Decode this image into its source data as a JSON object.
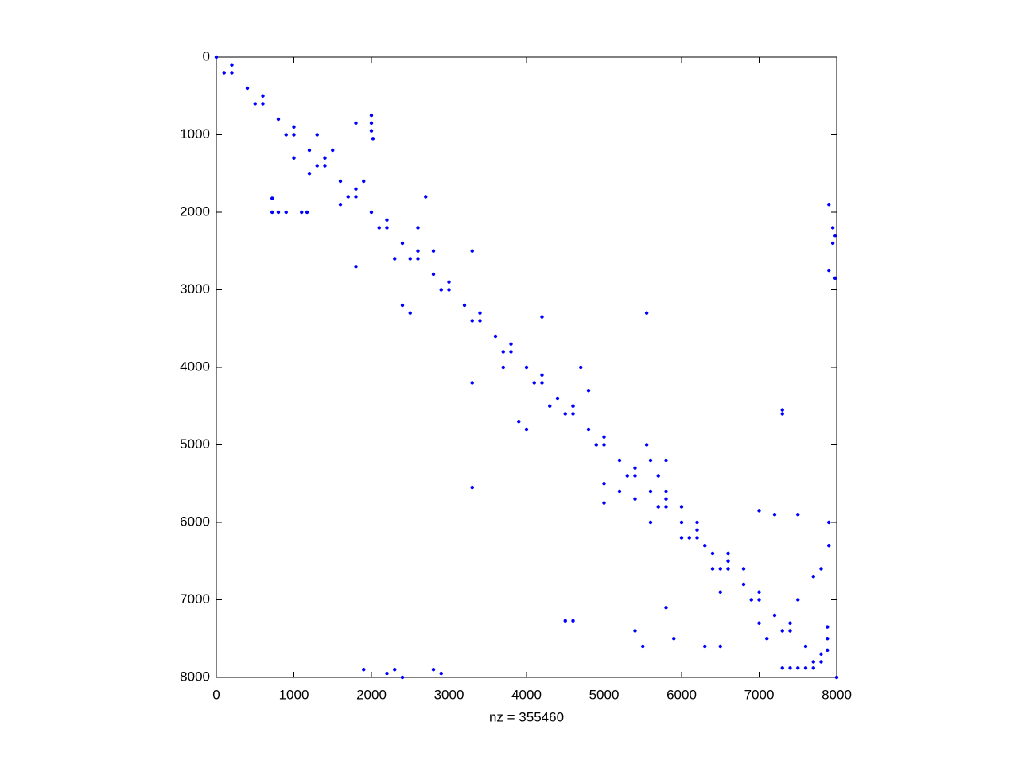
{
  "chart_data": {
    "type": "scatter",
    "xlabel": "nz = 355460",
    "color": "#0000ff",
    "y_reversed": true,
    "xlim": [
      0,
      8000
    ],
    "ylim": [
      0,
      8000
    ],
    "xticks": [
      0,
      1000,
      2000,
      3000,
      4000,
      5000,
      6000,
      7000,
      8000
    ],
    "yticks": [
      0,
      1000,
      2000,
      3000,
      4000,
      5000,
      6000,
      7000,
      8000
    ],
    "x": [
      0,
      200,
      400,
      600,
      800,
      1000,
      1200,
      1400,
      1600,
      1800,
      2000,
      2200,
      2400,
      2600,
      2800,
      3000,
      3200,
      3400,
      3600,
      3800,
      4000,
      4200,
      4400,
      4600,
      4800,
      5000,
      5200,
      5400,
      5600,
      5800,
      6000,
      6200,
      6400,
      6600,
      6800,
      7000,
      7200,
      7400,
      7600,
      7800,
      8000,
      100,
      200,
      500,
      600,
      900,
      1000,
      1300,
      1400,
      1700,
      1800,
      2100,
      2200,
      2500,
      2600,
      2900,
      3000,
      3300,
      3400,
      3700,
      3800,
      4100,
      4200,
      4500,
      4600,
      4900,
      5000,
      5300,
      5400,
      5700,
      5800,
      6100,
      6200,
      6500,
      6600,
      6900,
      7000,
      7300,
      7400,
      7700,
      7800,
      720,
      800,
      900,
      1100,
      1170,
      720,
      2000,
      2000,
      2000,
      2020,
      1800,
      7900,
      7950,
      7980,
      7950,
      7900,
      7980,
      5550,
      7300,
      7300,
      3300,
      1900,
      2200,
      2300,
      2400,
      2800,
      2900,
      4500,
      4600,
      7300,
      7400,
      7500,
      7600,
      7700,
      7880,
      7880,
      7880,
      5000,
      5200,
      5400,
      5000,
      5550,
      5600,
      5700,
      5800,
      5800,
      6000,
      5600,
      6300,
      6400,
      6600,
      6800,
      6500,
      6200,
      6000,
      7000,
      7200,
      7500,
      7900,
      7900,
      7800,
      7700,
      7500,
      5800,
      5900,
      6300,
      6500,
      7000,
      7100,
      5400,
      5500,
      1800,
      2300,
      2600,
      2700,
      2800,
      3300,
      2400,
      2500,
      4200,
      3300,
      4700,
      4800,
      3900,
      4000,
      4600,
      3700,
      4300,
      1000,
      1300,
      1600,
      1900,
      1200,
      1500
    ],
    "values": [
      0,
      200,
      400,
      600,
      800,
      1000,
      1200,
      1400,
      1600,
      1800,
      2000,
      2200,
      2400,
      2600,
      2800,
      3000,
      3200,
      3400,
      3600,
      3800,
      4000,
      4200,
      4400,
      4600,
      4800,
      5000,
      5200,
      5400,
      5600,
      5800,
      6000,
      6200,
      6400,
      6600,
      6800,
      7000,
      7200,
      7400,
      7600,
      7800,
      8000,
      200,
      100,
      600,
      500,
      1000,
      900,
      1400,
      1300,
      1800,
      1700,
      2200,
      2100,
      2600,
      2500,
      3000,
      2900,
      3400,
      3300,
      3800,
      3700,
      4200,
      4100,
      4600,
      4500,
      5000,
      4900,
      5400,
      5300,
      5800,
      5700,
      6200,
      6100,
      6600,
      6500,
      7000,
      6900,
      7400,
      7300,
      7800,
      7700,
      2000,
      2000,
      2000,
      2000,
      2000,
      1820,
      750,
      850,
      950,
      1050,
      850,
      1900,
      2200,
      2300,
      2400,
      2750,
      2850,
      3300,
      4550,
      4600,
      5550,
      7900,
      7950,
      7900,
      8000,
      7900,
      7950,
      7270,
      7270,
      7880,
      7880,
      7880,
      7880,
      7880,
      7350,
      7500,
      7650,
      5500,
      5600,
      5700,
      5750,
      5000,
      5200,
      5400,
      5200,
      5600,
      5800,
      6000,
      6300,
      6600,
      6400,
      6600,
      6900,
      6000,
      6200,
      5850,
      5900,
      5900,
      6000,
      6300,
      6600,
      6700,
      7000,
      7100,
      7500,
      7600,
      7600,
      7300,
      7500,
      7400,
      7600,
      2700,
      2600,
      2200,
      1800,
      2500,
      2500,
      3200,
      3300,
      3350,
      4200,
      4000,
      4300,
      4700,
      4800,
      4500,
      4000,
      4500,
      1300,
      1000,
      1900,
      1600,
      1500,
      1200
    ]
  }
}
